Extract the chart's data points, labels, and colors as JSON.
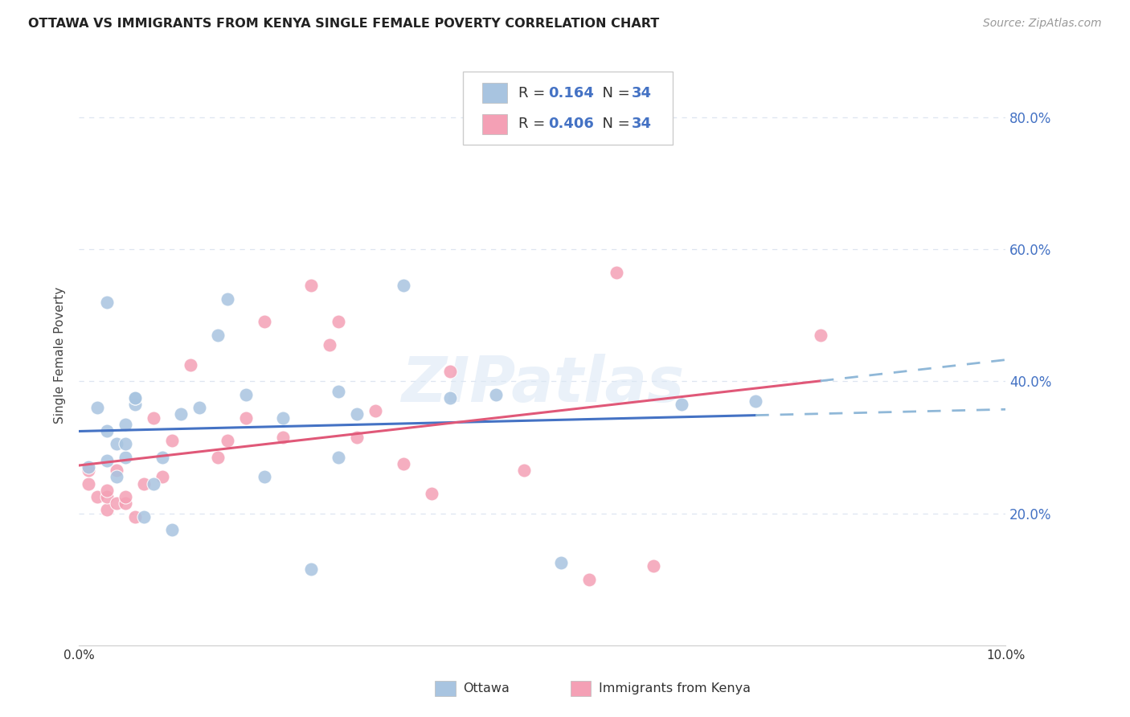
{
  "title": "OTTAWA VS IMMIGRANTS FROM KENYA SINGLE FEMALE POVERTY CORRELATION CHART",
  "source": "Source: ZipAtlas.com",
  "ylabel": "Single Female Poverty",
  "ottawa_R": 0.164,
  "kenya_R": 0.406,
  "N": 34,
  "ottawa_color": "#a8c4e0",
  "kenya_color": "#f4a0b5",
  "ottawa_line_color": "#4472c4",
  "kenya_line_color": "#e05878",
  "trendline_dash_color": "#90b8d8",
  "background_color": "#ffffff",
  "grid_color": "#dde5f0",
  "xmin": 0.0,
  "xmax": 0.1,
  "ymin": 0.0,
  "ymax": 0.88,
  "y_tick_vals": [
    0.2,
    0.4,
    0.6,
    0.8
  ],
  "y_tick_labels": [
    "20.0%",
    "40.0%",
    "60.0%",
    "80.0%"
  ],
  "x_tick_vals": [
    0.0,
    0.02,
    0.04,
    0.06,
    0.08,
    0.1
  ],
  "x_tick_labels_show": [
    "0.0%",
    "",
    "",
    "",
    "",
    "10.0%"
  ],
  "ottawa_x": [
    0.001,
    0.002,
    0.003,
    0.003,
    0.004,
    0.004,
    0.005,
    0.005,
    0.005,
    0.006,
    0.006,
    0.007,
    0.008,
    0.009,
    0.01,
    0.011,
    0.013,
    0.015,
    0.016,
    0.018,
    0.02,
    0.022,
    0.025,
    0.028,
    0.03,
    0.035,
    0.04,
    0.045,
    0.052,
    0.065,
    0.073,
    0.028,
    0.003,
    0.006
  ],
  "ottawa_y": [
    0.27,
    0.36,
    0.28,
    0.325,
    0.255,
    0.305,
    0.285,
    0.305,
    0.335,
    0.365,
    0.375,
    0.195,
    0.245,
    0.285,
    0.175,
    0.35,
    0.36,
    0.47,
    0.525,
    0.38,
    0.255,
    0.345,
    0.115,
    0.385,
    0.35,
    0.545,
    0.375,
    0.38,
    0.125,
    0.365,
    0.37,
    0.285,
    0.52,
    0.375
  ],
  "kenya_x": [
    0.001,
    0.001,
    0.002,
    0.003,
    0.003,
    0.003,
    0.004,
    0.004,
    0.005,
    0.005,
    0.006,
    0.007,
    0.008,
    0.009,
    0.01,
    0.012,
    0.015,
    0.016,
    0.018,
    0.02,
    0.022,
    0.025,
    0.027,
    0.028,
    0.03,
    0.032,
    0.035,
    0.038,
    0.04,
    0.048,
    0.055,
    0.058,
    0.062,
    0.08
  ],
  "kenya_y": [
    0.245,
    0.265,
    0.225,
    0.205,
    0.225,
    0.235,
    0.215,
    0.265,
    0.215,
    0.225,
    0.195,
    0.245,
    0.345,
    0.255,
    0.31,
    0.425,
    0.285,
    0.31,
    0.345,
    0.49,
    0.315,
    0.545,
    0.455,
    0.49,
    0.315,
    0.355,
    0.275,
    0.23,
    0.415,
    0.265,
    0.1,
    0.565,
    0.12,
    0.47
  ]
}
